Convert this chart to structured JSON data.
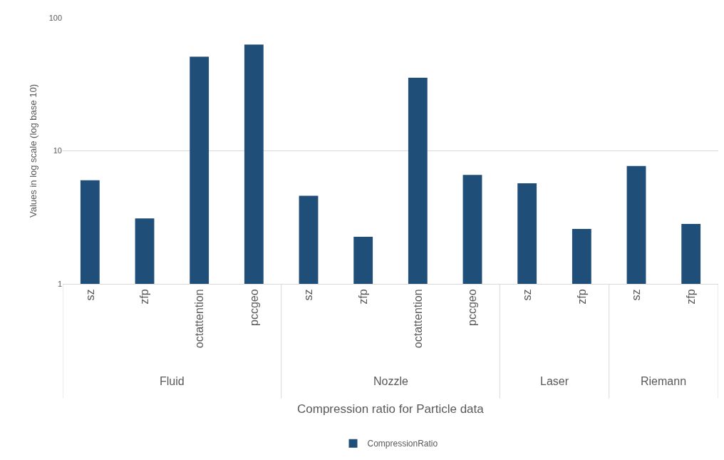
{
  "chart_data": {
    "type": "bar",
    "xlabel": "Compression ratio for Particle data",
    "ylabel": "Values in log scale (log base 10)",
    "categories": [
      "sz",
      "zfp",
      "octattention",
      "pccgeo",
      "sz",
      "zfp",
      "octattention",
      "pccgeo",
      "sz",
      "zfp",
      "sz",
      "zfp"
    ],
    "annotations": [
      "Fluid",
      "Nozzle",
      "Laser",
      "Riemann"
    ],
    "series": [
      {
        "name": "CompressionRatio",
        "color": "#1f4e79",
        "values": [
          6.0,
          3.1,
          51,
          63,
          4.6,
          2.26,
          35.5,
          6.6,
          5.7,
          2.59,
          7.7,
          2.82
        ]
      }
    ],
    "log": true,
    "ylim": [
      1,
      100
    ],
    "yticks": [
      1,
      10,
      100
    ],
    "grid": "y",
    "legend": "bottom"
  }
}
